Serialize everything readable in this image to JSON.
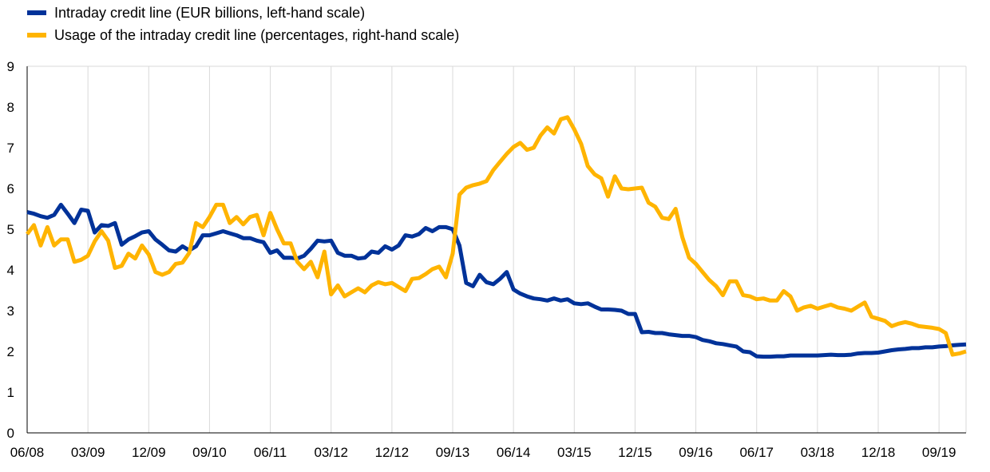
{
  "chart_data": {
    "type": "line",
    "title": "",
    "xlabel": "",
    "ylabel": "",
    "ylim": [
      0,
      9
    ],
    "y_ticks": [
      "0",
      "1",
      "2",
      "3",
      "4",
      "5",
      "6",
      "7",
      "8",
      "9"
    ],
    "x_ticks": [
      "06/08",
      "03/09",
      "12/09",
      "09/10",
      "06/11",
      "03/12",
      "12/12",
      "09/13",
      "06/14",
      "03/15",
      "12/15",
      "09/16",
      "06/17",
      "03/18",
      "12/18",
      "09/19"
    ],
    "grid": "vertical",
    "legend_position": "top-left",
    "x_start": "2008-06",
    "x_end": "2020-01",
    "series": [
      {
        "name": "Intraday credit line (EUR billions, left-hand scale)",
        "color": "#003299",
        "points": [
          [
            "2008-06",
            5.42
          ],
          [
            "2008-07",
            5.38
          ],
          [
            "2008-08",
            5.32
          ],
          [
            "2008-09",
            5.28
          ],
          [
            "2008-10",
            5.35
          ],
          [
            "2008-11",
            5.6
          ],
          [
            "2008-12",
            5.38
          ],
          [
            "2009-01",
            5.15
          ],
          [
            "2009-02",
            5.48
          ],
          [
            "2009-03",
            5.45
          ],
          [
            "2009-04",
            4.92
          ],
          [
            "2009-05",
            5.1
          ],
          [
            "2009-06",
            5.08
          ],
          [
            "2009-07",
            5.15
          ],
          [
            "2009-08",
            4.62
          ],
          [
            "2009-09",
            4.75
          ],
          [
            "2009-10",
            4.83
          ],
          [
            "2009-11",
            4.92
          ],
          [
            "2009-12",
            4.95
          ],
          [
            "2010-01",
            4.75
          ],
          [
            "2010-02",
            4.62
          ],
          [
            "2010-03",
            4.48
          ],
          [
            "2010-04",
            4.45
          ],
          [
            "2010-05",
            4.58
          ],
          [
            "2010-06",
            4.48
          ],
          [
            "2010-07",
            4.58
          ],
          [
            "2010-08",
            4.85
          ],
          [
            "2010-09",
            4.85
          ],
          [
            "2010-10",
            4.9
          ],
          [
            "2010-11",
            4.95
          ],
          [
            "2010-12",
            4.9
          ],
          [
            "2011-01",
            4.85
          ],
          [
            "2011-02",
            4.78
          ],
          [
            "2011-03",
            4.78
          ],
          [
            "2011-04",
            4.72
          ],
          [
            "2011-05",
            4.68
          ],
          [
            "2011-06",
            4.42
          ],
          [
            "2011-07",
            4.48
          ],
          [
            "2011-08",
            4.3
          ],
          [
            "2011-09",
            4.3
          ],
          [
            "2011-10",
            4.28
          ],
          [
            "2011-11",
            4.35
          ],
          [
            "2011-12",
            4.52
          ],
          [
            "2012-01",
            4.72
          ],
          [
            "2012-02",
            4.7
          ],
          [
            "2012-03",
            4.72
          ],
          [
            "2012-04",
            4.42
          ],
          [
            "2012-05",
            4.35
          ],
          [
            "2012-06",
            4.35
          ],
          [
            "2012-07",
            4.28
          ],
          [
            "2012-08",
            4.3
          ],
          [
            "2012-09",
            4.45
          ],
          [
            "2012-10",
            4.42
          ],
          [
            "2012-11",
            4.58
          ],
          [
            "2012-12",
            4.5
          ],
          [
            "2013-01",
            4.6
          ],
          [
            "2013-02",
            4.85
          ],
          [
            "2013-03",
            4.82
          ],
          [
            "2013-04",
            4.88
          ],
          [
            "2013-05",
            5.03
          ],
          [
            "2013-06",
            4.95
          ],
          [
            "2013-07",
            5.05
          ],
          [
            "2013-08",
            5.05
          ],
          [
            "2013-09",
            5.0
          ],
          [
            "2013-10",
            4.6
          ],
          [
            "2013-11",
            3.68
          ],
          [
            "2013-12",
            3.6
          ],
          [
            "2014-01",
            3.88
          ],
          [
            "2014-02",
            3.7
          ],
          [
            "2014-03",
            3.65
          ],
          [
            "2014-04",
            3.78
          ],
          [
            "2014-05",
            3.95
          ],
          [
            "2014-06",
            3.52
          ],
          [
            "2014-07",
            3.42
          ],
          [
            "2014-08",
            3.35
          ],
          [
            "2014-09",
            3.3
          ],
          [
            "2014-10",
            3.28
          ],
          [
            "2014-11",
            3.25
          ],
          [
            "2014-12",
            3.3
          ],
          [
            "2015-01",
            3.25
          ],
          [
            "2015-02",
            3.28
          ],
          [
            "2015-03",
            3.18
          ],
          [
            "2015-04",
            3.16
          ],
          [
            "2015-05",
            3.18
          ],
          [
            "2015-06",
            3.1
          ],
          [
            "2015-07",
            3.03
          ],
          [
            "2015-08",
            3.03
          ],
          [
            "2015-09",
            3.02
          ],
          [
            "2015-10",
            3.0
          ],
          [
            "2015-11",
            2.92
          ],
          [
            "2015-12",
            2.92
          ],
          [
            "2016-01",
            2.47
          ],
          [
            "2016-02",
            2.48
          ],
          [
            "2016-03",
            2.45
          ],
          [
            "2016-04",
            2.45
          ],
          [
            "2016-05",
            2.42
          ],
          [
            "2016-06",
            2.4
          ],
          [
            "2016-07",
            2.38
          ],
          [
            "2016-08",
            2.38
          ],
          [
            "2016-09",
            2.35
          ],
          [
            "2016-10",
            2.28
          ],
          [
            "2016-11",
            2.25
          ],
          [
            "2016-12",
            2.2
          ],
          [
            "2017-01",
            2.18
          ],
          [
            "2017-02",
            2.15
          ],
          [
            "2017-03",
            2.12
          ],
          [
            "2017-04",
            2.0
          ],
          [
            "2017-05",
            1.98
          ],
          [
            "2017-06",
            1.88
          ],
          [
            "2017-07",
            1.87
          ],
          [
            "2017-08",
            1.87
          ],
          [
            "2017-09",
            1.88
          ],
          [
            "2017-10",
            1.88
          ],
          [
            "2017-11",
            1.9
          ],
          [
            "2017-12",
            1.9
          ],
          [
            "2018-01",
            1.9
          ],
          [
            "2018-02",
            1.9
          ],
          [
            "2018-03",
            1.9
          ],
          [
            "2018-04",
            1.91
          ],
          [
            "2018-05",
            1.92
          ],
          [
            "2018-06",
            1.91
          ],
          [
            "2018-07",
            1.91
          ],
          [
            "2018-08",
            1.92
          ],
          [
            "2018-09",
            1.95
          ],
          [
            "2018-10",
            1.96
          ],
          [
            "2018-11",
            1.96
          ],
          [
            "2018-12",
            1.97
          ],
          [
            "2019-01",
            2.0
          ],
          [
            "2019-02",
            2.03
          ],
          [
            "2019-03",
            2.05
          ],
          [
            "2019-04",
            2.06
          ],
          [
            "2019-05",
            2.08
          ],
          [
            "2019-06",
            2.08
          ],
          [
            "2019-07",
            2.1
          ],
          [
            "2019-08",
            2.1
          ],
          [
            "2019-09",
            2.12
          ],
          [
            "2019-10",
            2.13
          ],
          [
            "2019-11",
            2.15
          ],
          [
            "2019-12",
            2.16
          ],
          [
            "2020-01",
            2.17
          ]
        ]
      },
      {
        "name": "Usage of the intraday credit line (percentages, right-hand scale)",
        "color": "#FFB400",
        "points": [
          [
            "2008-06",
            4.88
          ],
          [
            "2008-07",
            5.1
          ],
          [
            "2008-08",
            4.6
          ],
          [
            "2008-09",
            5.05
          ],
          [
            "2008-10",
            4.6
          ],
          [
            "2008-11",
            4.75
          ],
          [
            "2008-12",
            4.75
          ],
          [
            "2009-01",
            4.2
          ],
          [
            "2009-02",
            4.25
          ],
          [
            "2009-03",
            4.35
          ],
          [
            "2009-04",
            4.7
          ],
          [
            "2009-05",
            4.95
          ],
          [
            "2009-06",
            4.72
          ],
          [
            "2009-07",
            4.05
          ],
          [
            "2009-08",
            4.1
          ],
          [
            "2009-09",
            4.4
          ],
          [
            "2009-10",
            4.28
          ],
          [
            "2009-11",
            4.6
          ],
          [
            "2009-12",
            4.38
          ],
          [
            "2010-01",
            3.95
          ],
          [
            "2010-02",
            3.88
          ],
          [
            "2010-03",
            3.95
          ],
          [
            "2010-04",
            4.15
          ],
          [
            "2010-05",
            4.18
          ],
          [
            "2010-06",
            4.42
          ],
          [
            "2010-07",
            5.15
          ],
          [
            "2010-08",
            5.05
          ],
          [
            "2010-09",
            5.3
          ],
          [
            "2010-10",
            5.6
          ],
          [
            "2010-11",
            5.6
          ],
          [
            "2010-12",
            5.15
          ],
          [
            "2011-01",
            5.3
          ],
          [
            "2011-02",
            5.12
          ],
          [
            "2011-03",
            5.3
          ],
          [
            "2011-04",
            5.35
          ],
          [
            "2011-05",
            4.85
          ],
          [
            "2011-06",
            5.4
          ],
          [
            "2011-07",
            5.0
          ],
          [
            "2011-08",
            4.65
          ],
          [
            "2011-09",
            4.65
          ],
          [
            "2011-10",
            4.2
          ],
          [
            "2011-11",
            4.02
          ],
          [
            "2011-12",
            4.2
          ],
          [
            "2012-01",
            3.82
          ],
          [
            "2012-02",
            4.45
          ],
          [
            "2012-03",
            3.4
          ],
          [
            "2012-04",
            3.62
          ],
          [
            "2012-05",
            3.35
          ],
          [
            "2012-06",
            3.45
          ],
          [
            "2012-07",
            3.55
          ],
          [
            "2012-08",
            3.45
          ],
          [
            "2012-09",
            3.62
          ],
          [
            "2012-10",
            3.7
          ],
          [
            "2012-11",
            3.65
          ],
          [
            "2012-12",
            3.68
          ],
          [
            "2013-01",
            3.58
          ],
          [
            "2013-02",
            3.48
          ],
          [
            "2013-03",
            3.78
          ],
          [
            "2013-04",
            3.8
          ],
          [
            "2013-05",
            3.9
          ],
          [
            "2013-06",
            4.02
          ],
          [
            "2013-07",
            4.08
          ],
          [
            "2013-08",
            3.82
          ],
          [
            "2013-09",
            4.4
          ],
          [
            "2013-10",
            5.85
          ],
          [
            "2013-11",
            6.02
          ],
          [
            "2013-12",
            6.08
          ],
          [
            "2014-01",
            6.12
          ],
          [
            "2014-02",
            6.18
          ],
          [
            "2014-03",
            6.45
          ],
          [
            "2014-04",
            6.65
          ],
          [
            "2014-05",
            6.85
          ],
          [
            "2014-06",
            7.02
          ],
          [
            "2014-07",
            7.12
          ],
          [
            "2014-08",
            6.95
          ],
          [
            "2014-09",
            7.0
          ],
          [
            "2014-10",
            7.3
          ],
          [
            "2014-11",
            7.5
          ],
          [
            "2014-12",
            7.35
          ],
          [
            "2015-01",
            7.7
          ],
          [
            "2015-02",
            7.75
          ],
          [
            "2015-03",
            7.45
          ],
          [
            "2015-04",
            7.1
          ],
          [
            "2015-05",
            6.55
          ],
          [
            "2015-06",
            6.35
          ],
          [
            "2015-07",
            6.25
          ],
          [
            "2015-08",
            5.8
          ],
          [
            "2015-09",
            6.3
          ],
          [
            "2015-10",
            6.0
          ],
          [
            "2015-11",
            5.98
          ],
          [
            "2015-12",
            6.0
          ],
          [
            "2016-01",
            6.02
          ],
          [
            "2016-02",
            5.65
          ],
          [
            "2016-03",
            5.55
          ],
          [
            "2016-04",
            5.28
          ],
          [
            "2016-05",
            5.25
          ],
          [
            "2016-06",
            5.5
          ],
          [
            "2016-07",
            4.8
          ],
          [
            "2016-08",
            4.3
          ],
          [
            "2016-09",
            4.15
          ],
          [
            "2016-10",
            3.95
          ],
          [
            "2016-11",
            3.75
          ],
          [
            "2016-12",
            3.6
          ],
          [
            "2017-01",
            3.38
          ],
          [
            "2017-02",
            3.72
          ],
          [
            "2017-03",
            3.72
          ],
          [
            "2017-04",
            3.38
          ],
          [
            "2017-05",
            3.35
          ],
          [
            "2017-06",
            3.28
          ],
          [
            "2017-07",
            3.3
          ],
          [
            "2017-08",
            3.25
          ],
          [
            "2017-09",
            3.25
          ],
          [
            "2017-10",
            3.48
          ],
          [
            "2017-11",
            3.35
          ],
          [
            "2017-12",
            3.0
          ],
          [
            "2018-01",
            3.08
          ],
          [
            "2018-02",
            3.12
          ],
          [
            "2018-03",
            3.05
          ],
          [
            "2018-04",
            3.1
          ],
          [
            "2018-05",
            3.15
          ],
          [
            "2018-06",
            3.08
          ],
          [
            "2018-07",
            3.05
          ],
          [
            "2018-08",
            3.0
          ],
          [
            "2018-09",
            3.1
          ],
          [
            "2018-10",
            3.2
          ],
          [
            "2018-11",
            2.85
          ],
          [
            "2018-12",
            2.8
          ],
          [
            "2019-01",
            2.75
          ],
          [
            "2019-02",
            2.62
          ],
          [
            "2019-03",
            2.68
          ],
          [
            "2019-04",
            2.72
          ],
          [
            "2019-05",
            2.68
          ],
          [
            "2019-06",
            2.62
          ],
          [
            "2019-07",
            2.6
          ],
          [
            "2019-08",
            2.58
          ],
          [
            "2019-09",
            2.55
          ],
          [
            "2019-10",
            2.45
          ],
          [
            "2019-11",
            1.92
          ],
          [
            "2019-12",
            1.95
          ],
          [
            "2020-01",
            2.0
          ]
        ]
      }
    ]
  }
}
